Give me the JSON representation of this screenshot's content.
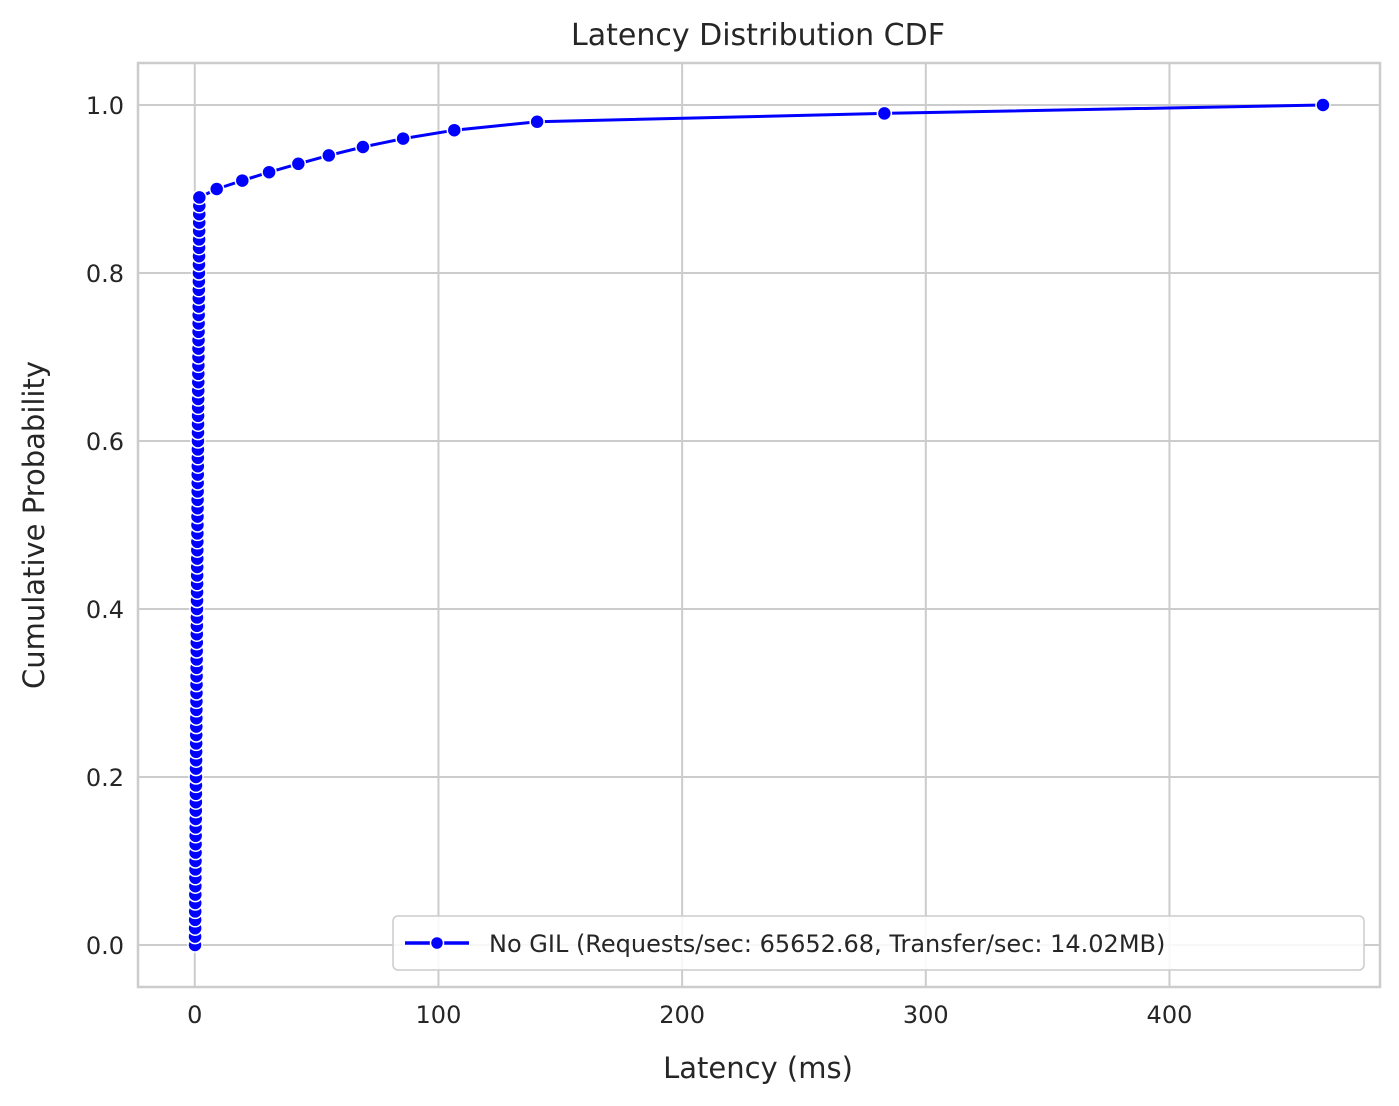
{
  "chart_data": {
    "type": "line",
    "title": "Latency Distribution CDF",
    "xlabel": "Latency (ms)",
    "ylabel": "Cumulative Probability",
    "xlim": [
      -23.3,
      486.4
    ],
    "ylim": [
      -0.05,
      1.05
    ],
    "xticks": [
      0,
      100,
      200,
      300,
      400
    ],
    "yticks": [
      0.0,
      0.2,
      0.4,
      0.6,
      0.8,
      1.0
    ],
    "xtick_labels": [
      "0",
      "100",
      "200",
      "300",
      "400"
    ],
    "ytick_labels": [
      "0.0",
      "0.2",
      "0.4",
      "0.6",
      "0.8",
      "1.0"
    ],
    "grid": true,
    "legend_position": "lower-right",
    "series": [
      {
        "name": "No GIL (Requests/sec: 65652.68, Transfer/sec: 14.02MB)",
        "color": "#0000ff",
        "marker": "circle",
        "x": [
          0.1,
          0.12,
          0.14,
          0.16,
          0.18,
          0.2,
          0.22,
          0.24,
          0.26,
          0.28,
          0.3,
          0.32,
          0.34,
          0.36,
          0.38,
          0.4,
          0.42,
          0.44,
          0.46,
          0.48,
          0.5,
          0.52,
          0.54,
          0.56,
          0.58,
          0.6,
          0.62,
          0.64,
          0.66,
          0.68,
          0.7,
          0.72,
          0.74,
          0.76,
          0.78,
          0.8,
          0.82,
          0.84,
          0.86,
          0.88,
          0.9,
          0.92,
          0.94,
          0.96,
          0.98,
          1.0,
          1.02,
          1.04,
          1.06,
          1.08,
          1.1,
          1.12,
          1.14,
          1.16,
          1.18,
          1.2,
          1.22,
          1.24,
          1.26,
          1.28,
          1.3,
          1.32,
          1.34,
          1.36,
          1.38,
          1.4,
          1.42,
          1.44,
          1.46,
          1.48,
          1.5,
          1.52,
          1.54,
          1.56,
          1.58,
          1.6,
          1.62,
          1.64,
          1.66,
          1.68,
          1.7,
          1.72,
          1.74,
          1.76,
          1.78,
          1.8,
          1.82,
          1.84,
          1.86,
          1.88,
          9.0,
          19.5,
          30.5,
          42.5,
          55.0,
          69.0,
          85.5,
          106.5,
          140.5,
          283.0,
          463.0
        ],
        "y": [
          0.0,
          0.01,
          0.02,
          0.03,
          0.04,
          0.05,
          0.06,
          0.07,
          0.08,
          0.09,
          0.1,
          0.11,
          0.12,
          0.13,
          0.14,
          0.15,
          0.16,
          0.17,
          0.18,
          0.19,
          0.2,
          0.21,
          0.22,
          0.23,
          0.24,
          0.25,
          0.26,
          0.27,
          0.28,
          0.29,
          0.3,
          0.31,
          0.32,
          0.33,
          0.34,
          0.35,
          0.36,
          0.37,
          0.38,
          0.39,
          0.4,
          0.41,
          0.42,
          0.43,
          0.44,
          0.45,
          0.46,
          0.47,
          0.48,
          0.49,
          0.5,
          0.51,
          0.52,
          0.53,
          0.54,
          0.55,
          0.56,
          0.57,
          0.58,
          0.59,
          0.6,
          0.61,
          0.62,
          0.63,
          0.64,
          0.65,
          0.66,
          0.67,
          0.68,
          0.69,
          0.7,
          0.71,
          0.72,
          0.73,
          0.74,
          0.75,
          0.76,
          0.77,
          0.78,
          0.79,
          0.8,
          0.81,
          0.82,
          0.83,
          0.84,
          0.85,
          0.86,
          0.87,
          0.88,
          0.89,
          0.9,
          0.91,
          0.92,
          0.93,
          0.94,
          0.95,
          0.96,
          0.97,
          0.98,
          0.99,
          1.0
        ]
      }
    ]
  }
}
